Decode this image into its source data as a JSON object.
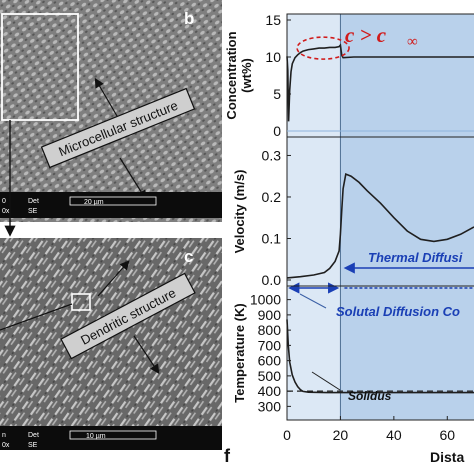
{
  "panels": {
    "b": {
      "label": "b",
      "annotation": "Microcellular structure",
      "scalebar": {
        "det": "Det",
        "mode": "SE",
        "mag_prefix": "0x",
        "length": "20 µm",
        "left_text": "0"
      }
    },
    "c": {
      "label": "c",
      "annotation": "Dendritic structure",
      "scalebar": {
        "det": "Det",
        "mode": "SE",
        "mag_prefix": "0x",
        "length": "10 µm",
        "left_text": "n"
      }
    },
    "f": {
      "label": "f"
    }
  },
  "colors": {
    "curve": "#1f1f1f",
    "annotation_blue": "#1a3fb5",
    "annotation_red": "#d11a1a",
    "shade_light": "#dce8f5",
    "shade_dark": "#b9d1eb",
    "sem_bg": "#7f7f7f"
  },
  "chart_data": [
    {
      "type": "line",
      "ylabel": "Concentration\n(wt%)",
      "ylabel_lines": [
        "Concentration",
        "(wt%)"
      ],
      "yticks": [
        0,
        5,
        10,
        15
      ],
      "ylim": [
        0,
        15
      ],
      "xlim": [
        0,
        70
      ],
      "series": [
        {
          "x": [
            0,
            0.3,
            0.6,
            1,
            1.5,
            2,
            3,
            4,
            5,
            6,
            8,
            10,
            12,
            14,
            16,
            18,
            19.5,
            20,
            20.5,
            21,
            25,
            30,
            40,
            50,
            60,
            70
          ],
          "y": [
            10.1,
            8.2,
            1.3,
            5.5,
            8.0,
            9.1,
            9.9,
            10.3,
            10.6,
            10.8,
            11.0,
            11.1,
            11.2,
            11.2,
            11.3,
            11.3,
            11.4,
            11.6,
            10.2,
            9.9,
            10.0,
            10.0,
            10.0,
            10.0,
            10.0,
            10.0
          ]
        }
      ],
      "annotation": {
        "main": "c > c",
        "sub": "∞",
        "x": 20,
        "y": 11.2
      }
    },
    {
      "type": "line",
      "ylabel": "Velocity (m/s)",
      "yticks": [
        0.0,
        0.1,
        0.2,
        0.3
      ],
      "ytick_labels": [
        "0.0",
        "0.1",
        "0.2",
        "0.3"
      ],
      "ylim": [
        0,
        0.33
      ],
      "xlim": [
        0,
        70
      ],
      "series": [
        {
          "x": [
            0,
            5,
            10,
            14,
            16,
            18,
            19.5,
            20,
            20.5,
            21,
            22,
            24,
            27,
            30,
            35,
            40,
            45,
            50,
            55,
            60,
            65,
            70
          ],
          "y": [
            0.005,
            0.008,
            0.012,
            0.018,
            0.028,
            0.045,
            0.07,
            0.11,
            0.17,
            0.22,
            0.255,
            0.25,
            0.235,
            0.215,
            0.185,
            0.15,
            0.118,
            0.098,
            0.093,
            0.098,
            0.11,
            0.128
          ]
        }
      ],
      "annotations": [
        "Thermal Diffusi",
        "Solutal Diffusion Co"
      ]
    },
    {
      "type": "line",
      "ylabel": "Temperature (K)",
      "xlabel": "Dista",
      "yticks": [
        300,
        400,
        500,
        600,
        700,
        800,
        900,
        1000
      ],
      "ylim": [
        250,
        1050
      ],
      "xlim": [
        0,
        70
      ],
      "xticks": [
        0,
        20,
        40,
        60
      ],
      "series": [
        {
          "name": "",
          "x": [
            0,
            0.5,
            1,
            2,
            3,
            4,
            5,
            6,
            8,
            10,
            15,
            20,
            30,
            40,
            50,
            60,
            70
          ],
          "y": [
            870,
            700,
            590,
            505,
            460,
            430,
            410,
            398,
            393,
            392,
            390,
            390,
            390,
            390,
            390,
            390,
            390
          ]
        },
        {
          "name": "",
          "x": [
            0,
            70
          ],
          "y": [
            400,
            400
          ],
          "dash": true
        }
      ],
      "annotation": "Solidus"
    }
  ]
}
